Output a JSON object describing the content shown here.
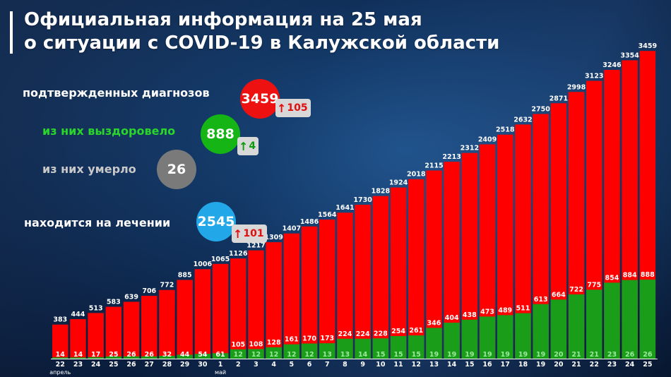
{
  "header": {
    "title_line1": "Официальная информация на 25 мая",
    "title_line2": "о ситуации с COVID-19 в Калужской области"
  },
  "summary": {
    "confirmed": {
      "label": "подтвержденных диагнозов",
      "value": "3459",
      "delta": "105"
    },
    "recovered": {
      "label": "из них выздоровело",
      "value": "888",
      "delta": "4"
    },
    "died": {
      "label": "из них умерло",
      "value": "26"
    },
    "treatment": {
      "label": "находится на лечении",
      "value": "2545",
      "delta": "101"
    }
  },
  "chart_data": {
    "type": "bar",
    "categories": [
      "22",
      "23",
      "24",
      "25",
      "26",
      "27",
      "28",
      "29",
      "30",
      "1",
      "2",
      "3",
      "4",
      "5",
      "6",
      "7",
      "8",
      "9",
      "10",
      "11",
      "12",
      "13",
      "14",
      "15",
      "16",
      "17",
      "18",
      "19",
      "20",
      "21",
      "22",
      "23",
      "24",
      "25"
    ],
    "month_labels": [
      {
        "index": 0,
        "text": "апрель"
      },
      {
        "index": 9,
        "text": "май"
      }
    ],
    "series": [
      {
        "values": [
          383,
          444,
          513,
          583,
          639,
          706,
          772,
          885,
          1006,
          1065,
          1126,
          1217,
          1309,
          1407,
          1486,
          1564,
          1641,
          1730,
          1828,
          1924,
          2018,
          2115,
          2213,
          2312,
          2409,
          2518,
          2632,
          2750,
          2871,
          2998,
          3123,
          3246,
          3354,
          3459
        ],
        "color": "#ff0000"
      },
      {
        "values": [
          14,
          14,
          17,
          25,
          26,
          26,
          32,
          44,
          54,
          61,
          105,
          108,
          128,
          161,
          170,
          173,
          224,
          224,
          228,
          254,
          261,
          346,
          404,
          438,
          473,
          489,
          511,
          613,
          664,
          722,
          775,
          854,
          884,
          888
        ],
        "color": "#1a9e1a"
      }
    ],
    "bar_labels": [
      14,
      14,
      17,
      25,
      26,
      26,
      32,
      44,
      54,
      61,
      12,
      12,
      12,
      12,
      12,
      13,
      13,
      14,
      15,
      15,
      15,
      19,
      19,
      19,
      19,
      19,
      19,
      19,
      20,
      21,
      21,
      23,
      26,
      26
    ],
    "colors": {
      "confirmed": "#ff0000",
      "recovered": "#1a9e1a",
      "inner_label": "#9ce89c"
    }
  }
}
